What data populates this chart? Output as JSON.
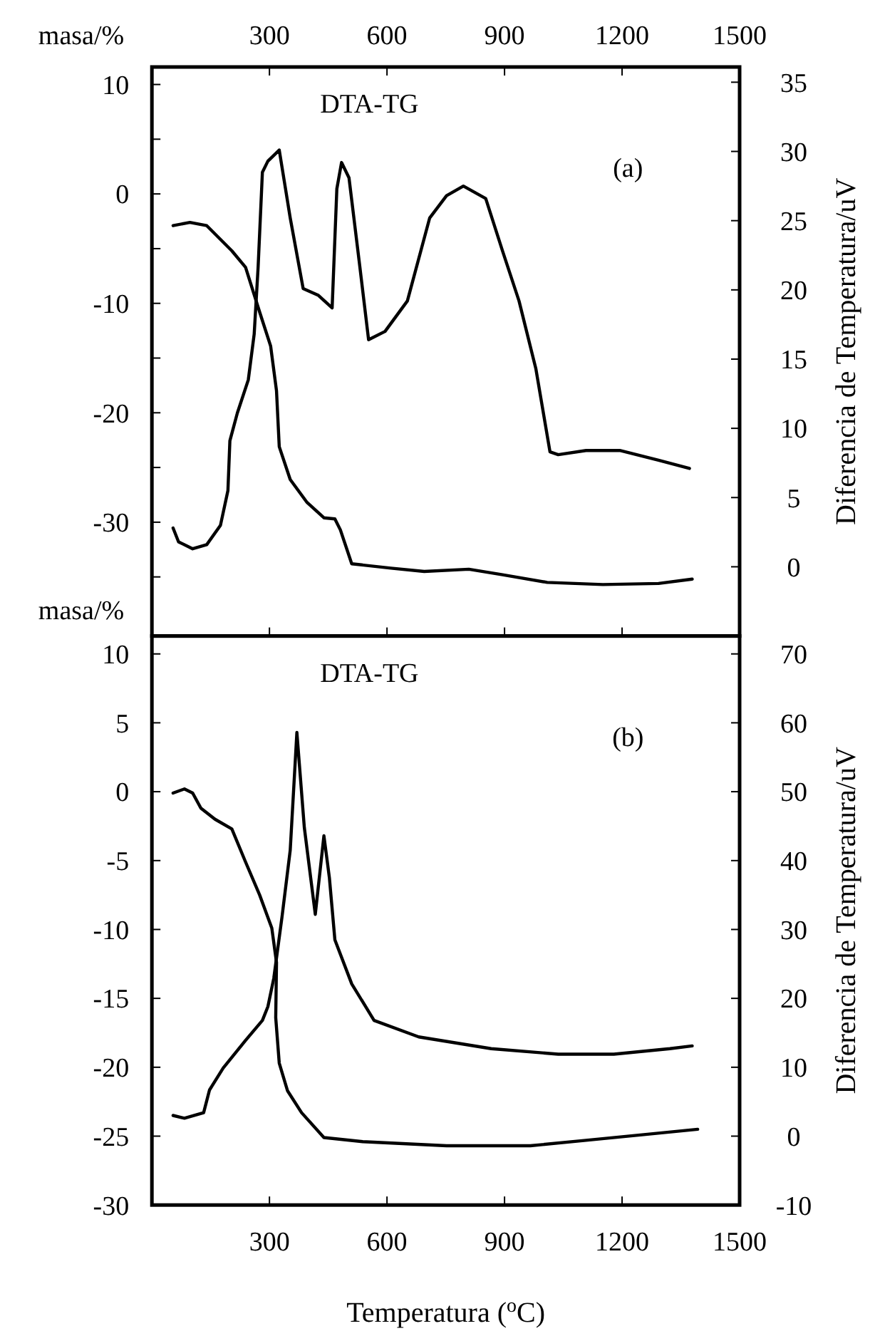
{
  "chart_data": [
    {
      "type": "line",
      "ylabel": "masa/%",
      "y2label": "Diferencia de Temperatura/uV",
      "annotations": [
        "DTA-TG",
        "(a)"
      ],
      "xlim": [
        0,
        1500
      ],
      "xticks": [
        300,
        600,
        900,
        1200,
        1500
      ],
      "ylim": [
        -40.4,
        11.6
      ],
      "yticks": [
        10,
        {
          "value": 5,
          "label": null
        },
        0,
        {
          "value": -5,
          "label": null
        },
        -10,
        {
          "value": -15,
          "label": null
        },
        -20,
        {
          "value": -25,
          "label": null
        },
        -30,
        {
          "value": -35,
          "label": null
        }
      ],
      "y2lim": [
        -5,
        36.1
      ],
      "y2ticks": [
        0,
        5,
        10,
        15,
        20,
        25,
        30,
        35
      ],
      "series": [
        {
          "color": "#000000",
          "x": [
            54,
            97,
            140,
            204,
            239,
            275,
            303,
            318,
            325,
            353,
            396,
            439,
            467,
            481,
            510,
            610,
            695,
            809,
            895,
            1009,
            1151,
            1293,
            1379
          ],
          "values": [
            -2.9,
            -2.6,
            -2.9,
            -5.2,
            -6.7,
            -10.8,
            -13.9,
            -18.0,
            -23.1,
            -26.1,
            -28.2,
            -29.6,
            -29.7,
            -30.7,
            -33.8,
            -34.2,
            -34.5,
            -34.3,
            -34.8,
            -35.5,
            -35.7,
            -35.6,
            -35.2
          ]
        },
        {
          "color": "#000000",
          "axis": "y2",
          "x": [
            54,
            68,
            104,
            140,
            175,
            194,
            199,
            218,
            246,
            261,
            271,
            282,
            296,
            325,
            353,
            386,
            425,
            460,
            472,
            484,
            503,
            531,
            553,
            595,
            652,
            709,
            752,
            795,
            852,
            895,
            937,
            980,
            1016,
            1037,
            1108,
            1194,
            1293,
            1372
          ],
          "values": [
            2.8,
            1.8,
            1.3,
            1.6,
            3.0,
            5.5,
            9.1,
            11.1,
            13.5,
            16.8,
            21.6,
            28.5,
            29.3,
            30.1,
            25.2,
            20.1,
            19.6,
            18.7,
            27.3,
            29.2,
            28.1,
            21.6,
            16.4,
            17.0,
            19.2,
            25.2,
            26.8,
            27.5,
            26.6,
            22.8,
            19.2,
            14.3,
            8.3,
            8.1,
            8.4,
            8.4,
            7.7,
            7.1
          ]
        }
      ]
    },
    {
      "type": "line",
      "xlabel": "Temperatura ($^{o}$C)",
      "ylabel": "masa/%",
      "y2label": "Diferencia de Temperatura/uV",
      "annotations": [
        "DTA-TG",
        "(b)"
      ],
      "xlim": [
        0,
        1500
      ],
      "xticks": [
        300,
        600,
        900,
        1200,
        1500
      ],
      "ylim": [
        -30,
        11.3
      ],
      "yticks": [
        10,
        5,
        0,
        -5,
        -10,
        -15,
        -20,
        -25,
        -30
      ],
      "y2lim": [
        -10,
        72.6
      ],
      "y2ticks": [
        70,
        60,
        50,
        40,
        30,
        20,
        10,
        0,
        -10
      ],
      "series": [
        {
          "color": "#000000",
          "x": [
            54,
            83,
            104,
            125,
            161,
            204,
            239,
            275,
            306,
            318,
            316,
            325,
            346,
            382,
            439,
            538,
            752,
            966,
            1108,
            1251,
            1393
          ],
          "values": [
            -0.1,
            0.2,
            -0.1,
            -1.2,
            -2.0,
            -2.7,
            -5.1,
            -7.5,
            -9.9,
            -12.4,
            -16.4,
            -19.7,
            -21.7,
            -23.3,
            -25.1,
            -25.4,
            -25.7,
            -25.7,
            -25.3,
            -24.9,
            -24.5
          ]
        },
        {
          "color": "#000000",
          "axis": "y2",
          "x": [
            54,
            83,
            132,
            147,
            182,
            239,
            282,
            296,
            311,
            332,
            353,
            370,
            389,
            417,
            439,
            453,
            467,
            510,
            567,
            681,
            866,
            1037,
            1179,
            1322,
            1379
          ],
          "values": [
            3.0,
            2.6,
            3.4,
            6.7,
            9.9,
            13.9,
            16.8,
            18.8,
            22.9,
            31.8,
            41.5,
            58.6,
            44.8,
            32.2,
            43.6,
            37.5,
            28.5,
            22.1,
            16.8,
            14.4,
            12.7,
            11.9,
            11.9,
            12.7,
            13.1
          ]
        }
      ]
    }
  ]
}
